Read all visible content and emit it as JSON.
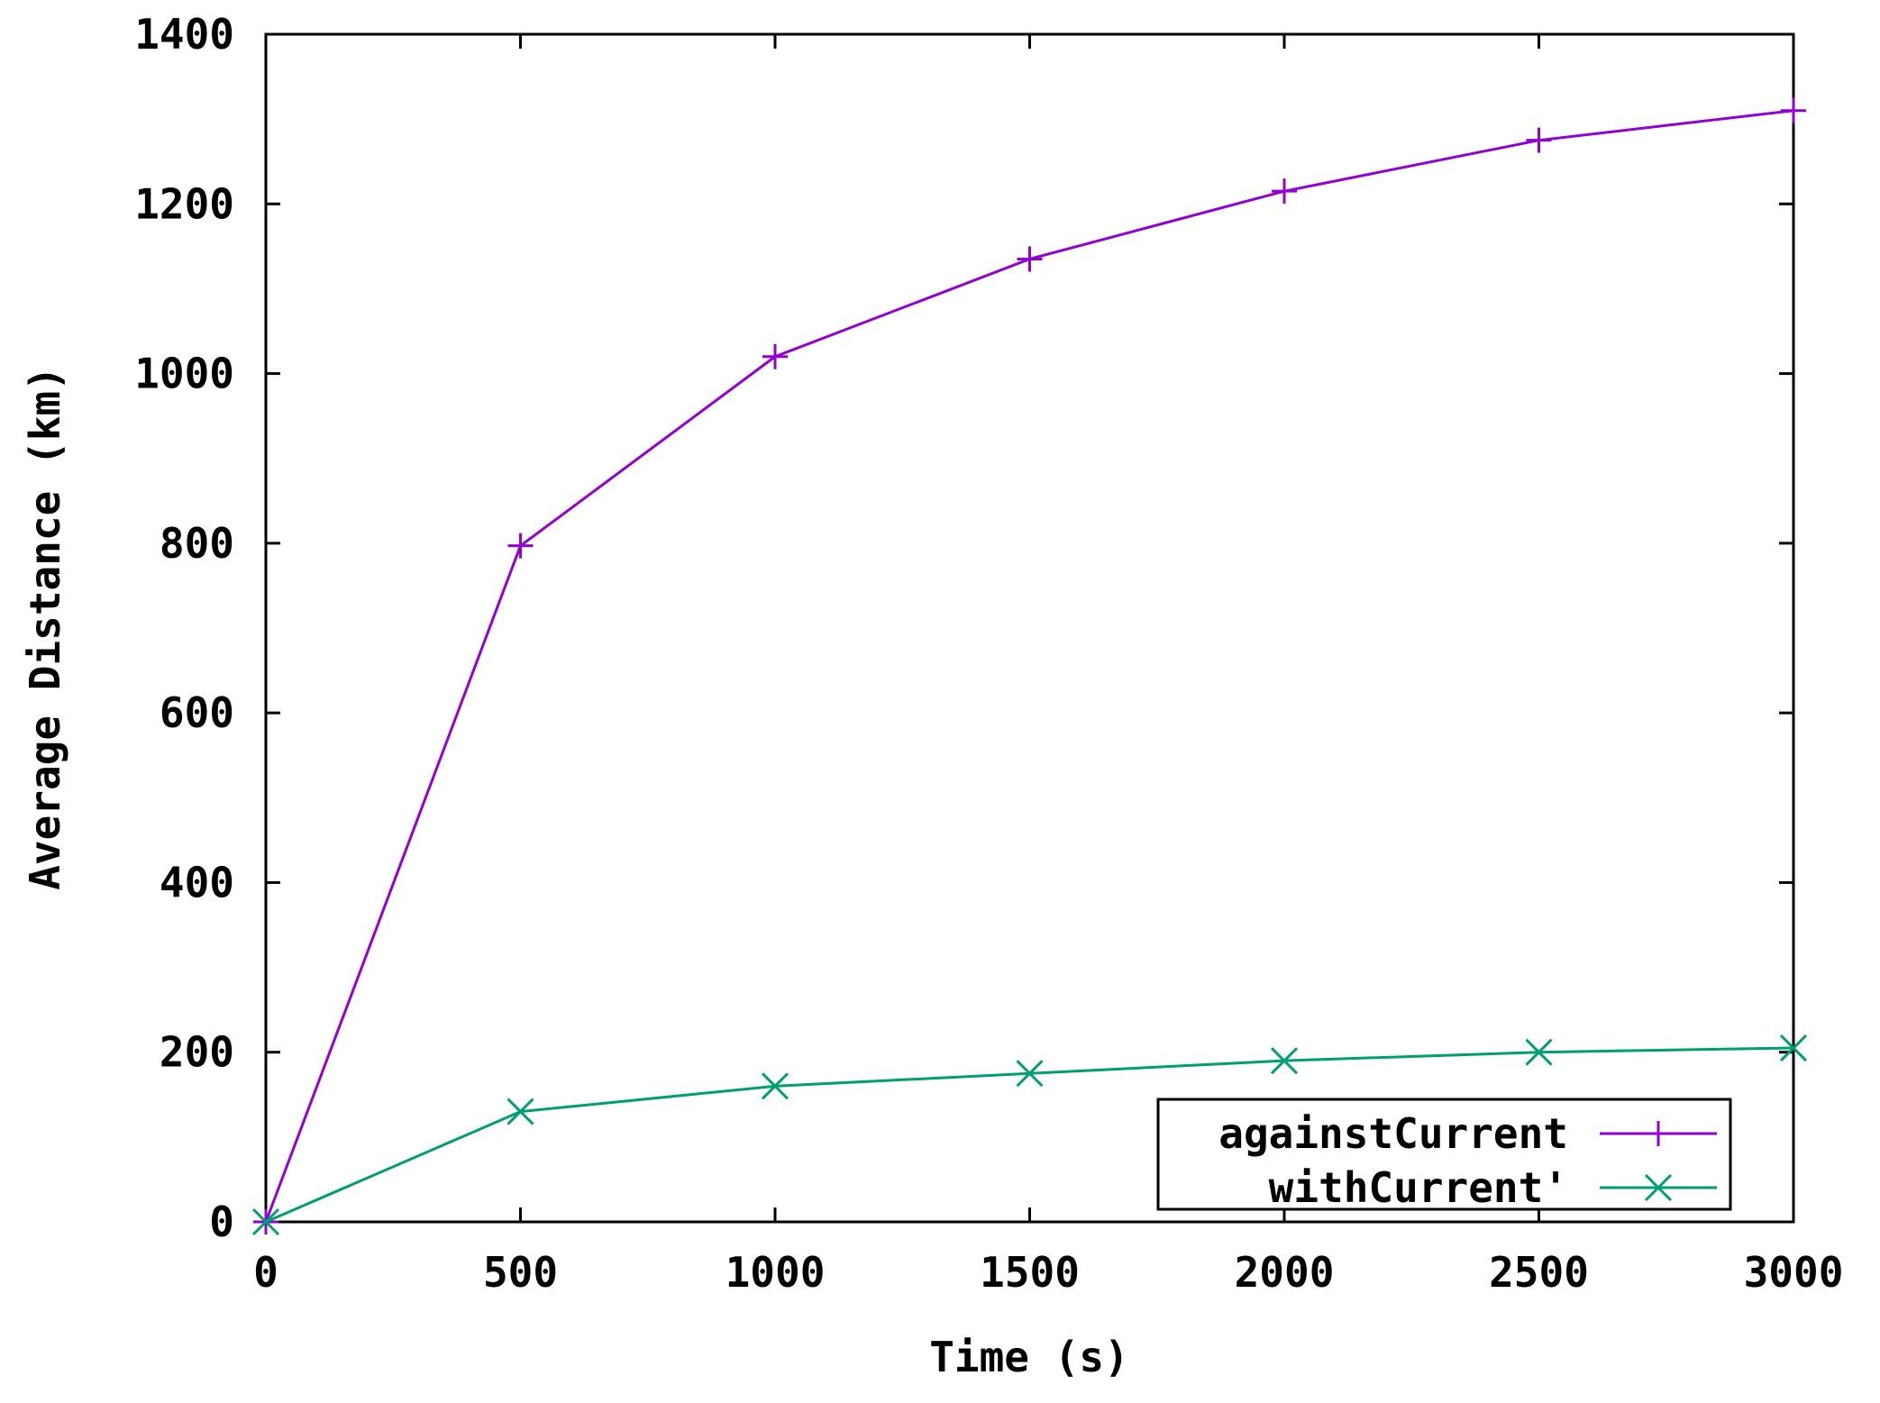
{
  "chart_data": {
    "type": "line",
    "title": "",
    "xlabel": "Time (s)",
    "ylabel": "Average Distance (km)",
    "xlim": [
      0,
      3000
    ],
    "ylim": [
      0,
      1400
    ],
    "xticks": [
      0,
      500,
      1000,
      1500,
      2000,
      2500,
      3000
    ],
    "yticks": [
      0,
      200,
      400,
      600,
      800,
      1000,
      1200,
      1400
    ],
    "x": [
      0,
      500,
      1000,
      1500,
      2000,
      2500,
      3000
    ],
    "series": [
      {
        "name": "againstCurrent",
        "values": [
          0,
          797,
          1020,
          1135,
          1215,
          1275,
          1310
        ],
        "color": "#9400d3",
        "marker": "plus"
      },
      {
        "name": "withCurrent'",
        "values": [
          0,
          130,
          160,
          175,
          190,
          200,
          205
        ],
        "color": "#009e73",
        "marker": "cross"
      }
    ],
    "grid": false,
    "legend_position": "bottom-right"
  }
}
